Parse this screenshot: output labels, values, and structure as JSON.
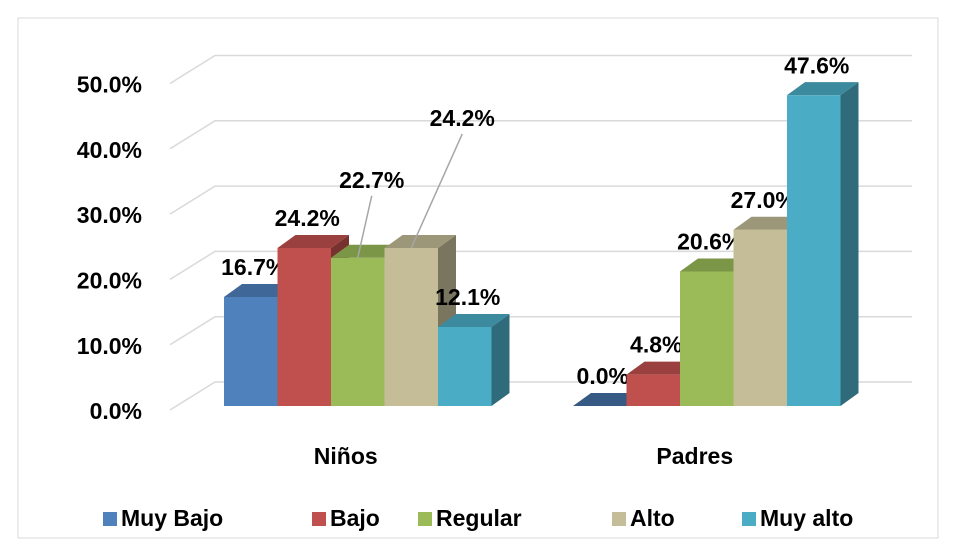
{
  "chart_data": {
    "type": "bar3d",
    "categories": [
      "Niños",
      "Padres"
    ],
    "series": [
      {
        "name": "Muy Bajo",
        "color": "#4f81bd",
        "values": [
          16.7,
          0.0
        ],
        "value_labels": [
          "16.7%",
          "0.0%"
        ]
      },
      {
        "name": "Bajo",
        "color": "#c0504d",
        "values": [
          24.2,
          4.8
        ],
        "value_labels": [
          "24.2%",
          "4.8%"
        ]
      },
      {
        "name": "Regular",
        "color": "#9bbb59",
        "values": [
          22.7,
          20.6
        ],
        "value_labels": [
          "22.7%",
          "20.6%"
        ]
      },
      {
        "name": "Alto",
        "color": "#c4bd97",
        "values": [
          24.2,
          27.0
        ],
        "value_labels": [
          "24.2%",
          "27.0%"
        ]
      },
      {
        "name": "Muy alto",
        "color": "#4bacc6",
        "values": [
          12.1,
          47.6
        ],
        "value_labels": [
          "12.1%",
          "47.6%"
        ]
      }
    ],
    "ylim": [
      0,
      50
    ],
    "yticks": [
      {
        "value": 0,
        "label": "0.0%"
      },
      {
        "value": 10,
        "label": "10.0%"
      },
      {
        "value": 20,
        "label": "20.0%"
      },
      {
        "value": 30,
        "label": "30.0%"
      },
      {
        "value": 40,
        "label": "40.0%"
      },
      {
        "value": 50,
        "label": "50.0%"
      }
    ],
    "grid": true,
    "legend": "bottom"
  }
}
